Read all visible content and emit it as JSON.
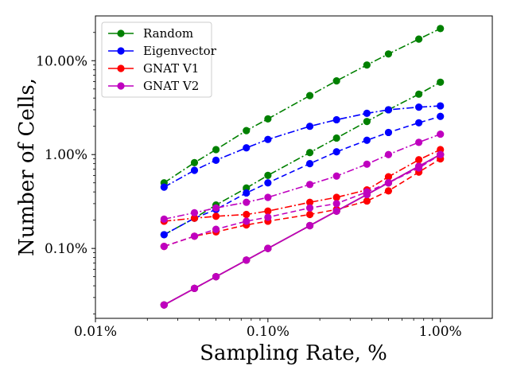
{
  "chart_data": {
    "type": "line",
    "xlabel": "Sampling Rate, %",
    "ylabel": "Number of Cells,",
    "xscale": "log",
    "yscale": "log",
    "xlim": [
      0.01,
      2.0
    ],
    "ylim": [
      0.018,
      30
    ],
    "x_ticks": [
      0.01,
      0.1,
      1.0
    ],
    "x_tick_labels": [
      "0.01%",
      "0.10%",
      "1.00%"
    ],
    "y_ticks": [
      0.1,
      1.0,
      10.0
    ],
    "y_tick_labels": [
      "0.10%",
      "1.00%",
      "10.00%"
    ],
    "grid": false,
    "legend_position": "top-left",
    "x": [
      0.025,
      0.0375,
      0.05,
      0.075,
      0.1,
      0.175,
      0.25,
      0.375,
      0.5,
      0.75,
      1.0
    ],
    "legend": [
      {
        "name": "Random",
        "color": "#008000"
      },
      {
        "name": "Eigenvector",
        "color": "#0000ff"
      },
      {
        "name": "GNAT V1",
        "color": "#ff0000"
      },
      {
        "name": "GNAT V2",
        "color": "#bf00bf"
      }
    ],
    "series": [
      {
        "legend": 0,
        "color": "#008000",
        "style": "dashdot",
        "values": [
          0.5,
          0.82,
          1.13,
          1.8,
          2.4,
          4.25,
          6.1,
          9.0,
          11.8,
          17.0,
          22.0
        ]
      },
      {
        "legend": 0,
        "color": "#008000",
        "style": "dashdot",
        "values": [
          0.14,
          0.21,
          0.29,
          0.44,
          0.6,
          1.05,
          1.5,
          2.25,
          3.0,
          4.4,
          5.9
        ]
      },
      {
        "legend": 0,
        "color": "#008000",
        "style": "solid",
        "values": [
          0.025,
          0.0375,
          0.05,
          0.075,
          0.1,
          0.175,
          0.25,
          0.375,
          0.5,
          0.75,
          1.0
        ]
      },
      {
        "legend": 1,
        "color": "#0000ff",
        "style": "dashdot",
        "values": [
          0.45,
          0.68,
          0.87,
          1.18,
          1.45,
          2.0,
          2.35,
          2.75,
          3.0,
          3.2,
          3.3
        ]
      },
      {
        "legend": 1,
        "color": "#0000ff",
        "style": "dashed",
        "values": [
          0.14,
          0.21,
          0.26,
          0.39,
          0.5,
          0.8,
          1.07,
          1.42,
          1.72,
          2.18,
          2.55
        ]
      },
      {
        "legend": 1,
        "color": "#0000ff",
        "style": "solid",
        "values": [
          0.025,
          0.0375,
          0.05,
          0.075,
          0.1,
          0.175,
          0.25,
          0.375,
          0.5,
          0.75,
          1.0
        ]
      },
      {
        "legend": 2,
        "color": "#ff0000",
        "style": "dashdot",
        "values": [
          0.195,
          0.21,
          0.22,
          0.23,
          0.25,
          0.31,
          0.35,
          0.42,
          0.58,
          0.88,
          1.13
        ]
      },
      {
        "legend": 2,
        "color": "#ff0000",
        "style": "dashed",
        "values": [
          0.105,
          0.135,
          0.15,
          0.178,
          0.195,
          0.23,
          0.26,
          0.32,
          0.41,
          0.65,
          0.9
        ]
      },
      {
        "legend": 2,
        "color": "#ff0000",
        "style": "solid",
        "values": [
          0.025,
          0.0375,
          0.05,
          0.075,
          0.1,
          0.175,
          0.25,
          0.375,
          0.5,
          0.75,
          1.0
        ]
      },
      {
        "legend": 3,
        "color": "#bf00bf",
        "style": "dashdot",
        "values": [
          0.205,
          0.24,
          0.27,
          0.31,
          0.35,
          0.48,
          0.59,
          0.79,
          1.0,
          1.35,
          1.65
        ]
      },
      {
        "legend": 3,
        "color": "#bf00bf",
        "style": "dashed",
        "values": [
          0.105,
          0.135,
          0.16,
          0.195,
          0.215,
          0.27,
          0.3,
          0.4,
          0.5,
          0.72,
          1.0
        ]
      },
      {
        "legend": 3,
        "color": "#bf00bf",
        "style": "solid",
        "values": [
          0.025,
          0.0375,
          0.05,
          0.075,
          0.1,
          0.175,
          0.25,
          0.375,
          0.5,
          0.75,
          1.0
        ]
      }
    ]
  }
}
